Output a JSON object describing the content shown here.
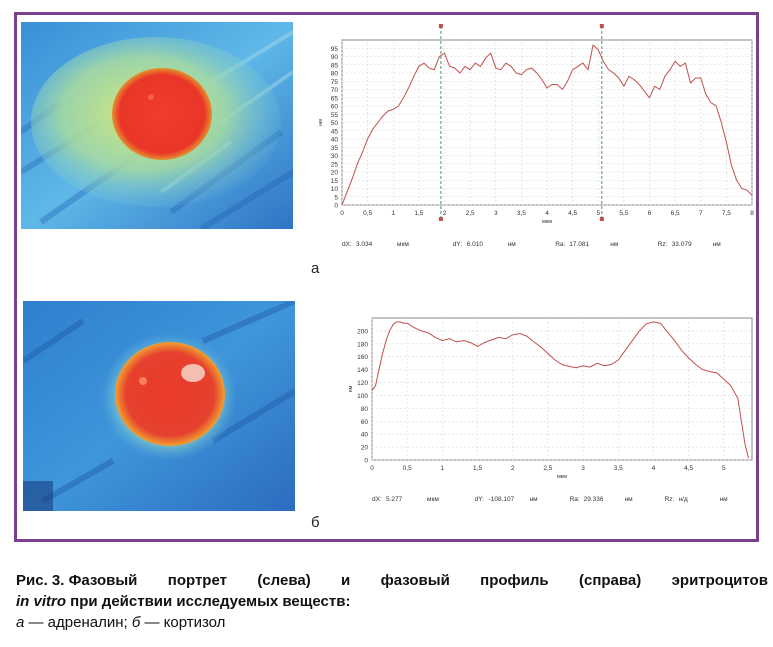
{
  "figure": {
    "caption": {
      "line1": [
        "Рис. 3. Фазовый",
        "портрет",
        "(слева)",
        "и",
        "фазовый",
        "профиль",
        "(справа)",
        "эритроцитов"
      ],
      "line2_italic": "in vitro",
      "line2_rest": " при действии исследуемых веществ:",
      "line3_a": "а",
      "line3_a_text": " — адреналин; ",
      "line3_b": "б",
      "line3_b_text": " — кортизол"
    },
    "colors": {
      "frame": "#7b3f8d",
      "profile_line": "#c0504d",
      "cursor_line": "#2e8b57",
      "cursor_marker": "#c0504d"
    },
    "panels": [
      {
        "letter": "а",
        "image_description_icon": "phase-portrait-red-cell-a",
        "measurements": [
          {
            "label": "dX:",
            "value": "3.034",
            "unit": "мкм"
          },
          {
            "label": "dY:",
            "value": "6.010",
            "unit": "нм"
          },
          {
            "label": "Ra:",
            "value": "17.081",
            "unit": "нм"
          },
          {
            "label": "Rz:",
            "value": "33.079",
            "unit": "нм"
          }
        ]
      },
      {
        "letter": "б",
        "image_description_icon": "phase-portrait-red-cell-b",
        "measurements": [
          {
            "label": "dX:",
            "value": "5.277",
            "unit": "мкм"
          },
          {
            "label": "dY:",
            "value": "-108.107",
            "unit": "нм"
          },
          {
            "label": "Ra:",
            "value": "29.336",
            "unit": "нм"
          },
          {
            "label": "Rz:",
            "value": "н/д",
            "unit": "нм"
          }
        ]
      }
    ]
  },
  "chart_data": [
    {
      "type": "line",
      "xlabel": "мкм",
      "ylabel": "нм",
      "xlim": [
        0,
        8
      ],
      "ylim": [
        0,
        100
      ],
      "xticks": [
        "0",
        "0,5",
        "1",
        "1,5",
        "2",
        "2,5",
        "3",
        "3,5",
        "4",
        "4,5",
        "5",
        "5,5",
        "6",
        "6,5",
        "7",
        "7,5",
        "8"
      ],
      "yticks": [
        "0",
        "5",
        "10",
        "15",
        "20",
        "25",
        "30",
        "35",
        "40",
        "45",
        "50",
        "55",
        "60",
        "65",
        "70",
        "75",
        "80",
        "85",
        "90",
        "95"
      ],
      "grid": true,
      "cursors_x": [
        1.93,
        5.07
      ],
      "x": [
        0,
        0.1,
        0.2,
        0.3,
        0.4,
        0.5,
        0.6,
        0.7,
        0.8,
        0.9,
        1.0,
        1.1,
        1.2,
        1.3,
        1.4,
        1.5,
        1.6,
        1.7,
        1.8,
        1.9,
        2.0,
        2.1,
        2.2,
        2.3,
        2.4,
        2.5,
        2.6,
        2.7,
        2.8,
        2.9,
        3.0,
        3.1,
        3.2,
        3.3,
        3.4,
        3.5,
        3.6,
        3.7,
        3.8,
        3.9,
        4.0,
        4.1,
        4.2,
        4.3,
        4.4,
        4.5,
        4.6,
        4.7,
        4.8,
        4.9,
        5.0,
        5.1,
        5.2,
        5.3,
        5.4,
        5.5,
        5.6,
        5.7,
        5.8,
        5.9,
        6.0,
        6.1,
        6.2,
        6.3,
        6.4,
        6.5,
        6.6,
        6.7,
        6.8,
        6.9,
        7.0,
        7.1,
        7.2,
        7.3,
        7.4,
        7.5,
        7.6,
        7.7,
        7.8,
        7.9,
        8.0
      ],
      "y": [
        0,
        8,
        16,
        25,
        32,
        40,
        46,
        50,
        54,
        57,
        58,
        60,
        65,
        71,
        78,
        84,
        86,
        83,
        82,
        90,
        92,
        84,
        83,
        80,
        84,
        82,
        86,
        84,
        89,
        92,
        83,
        82,
        86,
        84,
        80,
        79,
        82,
        83,
        80,
        76,
        71,
        73,
        73,
        70,
        75,
        82,
        84,
        86,
        82,
        97,
        94,
        87,
        82,
        80,
        77,
        72,
        78,
        76,
        73,
        69,
        65,
        72,
        70,
        78,
        82,
        87,
        84,
        86,
        74,
        77,
        77,
        67,
        62,
        60,
        50,
        38,
        24,
        15,
        10,
        9,
        6
      ]
    },
    {
      "type": "line",
      "xlabel": "мкм",
      "ylabel": "нм",
      "xlim": [
        0,
        5.4
      ],
      "ylim": [
        0,
        220
      ],
      "xticks": [
        "0",
        "0,5",
        "1",
        "1,5",
        "2",
        "2,5",
        "3",
        "3,5",
        "4",
        "4,5",
        "5"
      ],
      "yticks": [
        "0",
        "20",
        "40",
        "60",
        "80",
        "100",
        "120",
        "140",
        "160",
        "180",
        "200"
      ],
      "grid": true,
      "x": [
        0,
        0.05,
        0.1,
        0.15,
        0.2,
        0.25,
        0.3,
        0.35,
        0.4,
        0.45,
        0.5,
        0.6,
        0.7,
        0.8,
        0.9,
        1.0,
        1.1,
        1.2,
        1.3,
        1.4,
        1.5,
        1.6,
        1.7,
        1.8,
        1.9,
        2.0,
        2.1,
        2.2,
        2.3,
        2.4,
        2.5,
        2.6,
        2.7,
        2.8,
        2.9,
        3.0,
        3.1,
        3.2,
        3.3,
        3.4,
        3.5,
        3.6,
        3.7,
        3.8,
        3.9,
        4.0,
        4.1,
        4.2,
        4.3,
        4.4,
        4.5,
        4.6,
        4.7,
        4.8,
        4.9,
        5.0,
        5.1,
        5.2,
        5.25,
        5.3,
        5.35
      ],
      "y": [
        108,
        115,
        140,
        165,
        185,
        200,
        210,
        214,
        214,
        212,
        212,
        205,
        200,
        197,
        190,
        185,
        188,
        183,
        185,
        182,
        176,
        182,
        186,
        190,
        188,
        194,
        196,
        192,
        183,
        175,
        165,
        155,
        148,
        145,
        143,
        146,
        144,
        150,
        146,
        148,
        155,
        170,
        185,
        200,
        211,
        214,
        212,
        198,
        185,
        170,
        158,
        148,
        140,
        137,
        135,
        125,
        115,
        95,
        60,
        25,
        3
      ]
    }
  ]
}
